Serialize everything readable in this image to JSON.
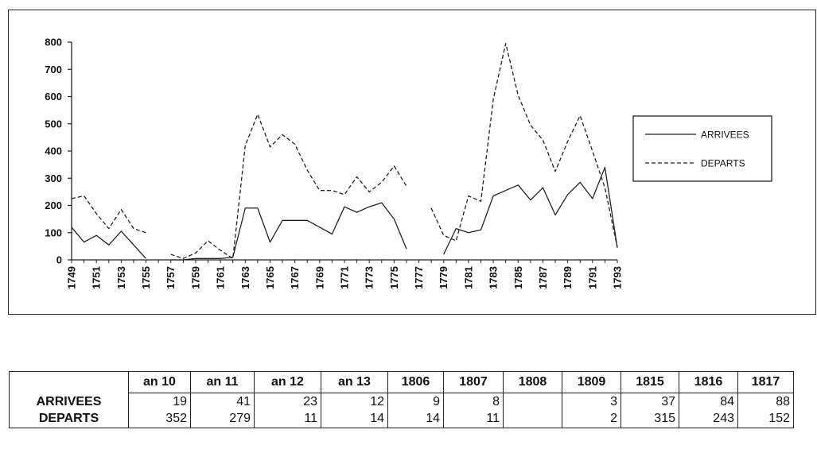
{
  "chart_data": {
    "type": "line",
    "ylim": [
      0,
      800
    ],
    "yticks": [
      0,
      100,
      200,
      300,
      400,
      500,
      600,
      700,
      800
    ],
    "x": [
      1749,
      1750,
      1751,
      1752,
      1753,
      1754,
      1755,
      1756,
      1757,
      1758,
      1759,
      1760,
      1761,
      1762,
      1763,
      1764,
      1765,
      1766,
      1767,
      1768,
      1769,
      1770,
      1771,
      1772,
      1773,
      1774,
      1775,
      1776,
      1777,
      1778,
      1779,
      1780,
      1781,
      1782,
      1783,
      1784,
      1785,
      1786,
      1787,
      1788,
      1789,
      1790,
      1791,
      1792,
      1793
    ],
    "xtick_labels": [
      "1749",
      "1751",
      "1753",
      "1755",
      "1757",
      "1759",
      "1761",
      "1763",
      "1765",
      "1767",
      "1769",
      "1771",
      "1773",
      "1775",
      "1777",
      "1779",
      "1781",
      "1783",
      "1785",
      "1787",
      "1789",
      "1791",
      "1793"
    ],
    "legend_position": "right",
    "series": [
      {
        "name": "ARRIVEES",
        "style": "solid",
        "color": "#222222",
        "values": [
          120,
          65,
          90,
          55,
          105,
          55,
          5,
          null,
          0,
          0,
          5,
          5,
          5,
          10,
          190,
          190,
          65,
          145,
          145,
          145,
          120,
          95,
          195,
          175,
          195,
          210,
          150,
          40,
          null,
          null,
          20,
          115,
          100,
          110,
          235,
          255,
          275,
          220,
          265,
          165,
          240,
          285,
          225,
          340,
          45
        ]
      },
      {
        "name": "DEPARTS",
        "style": "dashed",
        "color": "#222222",
        "values": [
          225,
          235,
          170,
          115,
          185,
          115,
          100,
          null,
          20,
          5,
          25,
          70,
          35,
          5,
          420,
          535,
          415,
          460,
          425,
          330,
          255,
          255,
          240,
          305,
          250,
          285,
          345,
          270,
          null,
          190,
          90,
          70,
          235,
          215,
          590,
          795,
          605,
          495,
          440,
          325,
          435,
          530,
          400,
          265,
          45
        ]
      }
    ]
  },
  "table": {
    "columns": [
      "an 10",
      "an 11",
      "an 12",
      "an 13",
      "1806",
      "1807",
      "1808",
      "1809",
      "1815",
      "1816",
      "1817"
    ],
    "rows": [
      {
        "label": "ARRIVEES",
        "values": [
          "19",
          "41",
          "23",
          "12",
          "9",
          "8",
          "",
          "3",
          "37",
          "84",
          "88"
        ]
      },
      {
        "label": "DEPARTS",
        "values": [
          "352",
          "279",
          "11",
          "14",
          "14",
          "11",
          "",
          "2",
          "315",
          "243",
          "152"
        ]
      }
    ]
  }
}
